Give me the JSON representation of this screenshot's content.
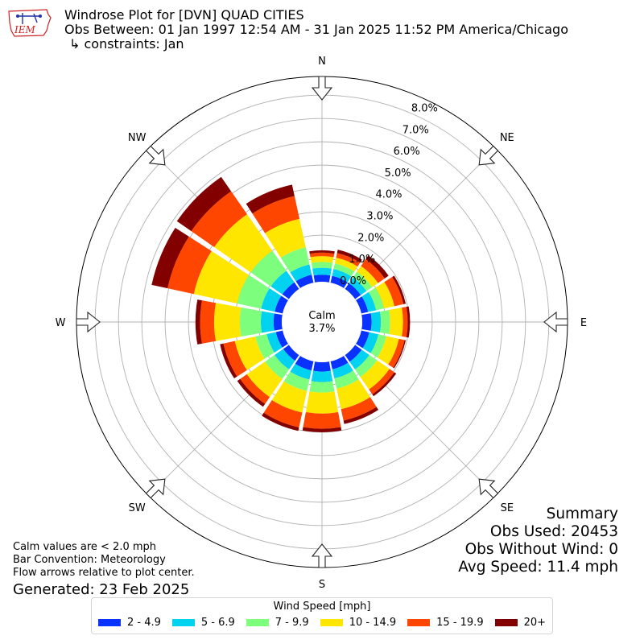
{
  "header": {
    "title": "Windrose Plot for [DVN] QUAD CITIES",
    "obs_between": "Obs Between: 01 Jan 1997 12:54 AM - 31 Jan 2025 11:52 PM America/Chicago",
    "constraints": "↳ constraints: Jan"
  },
  "logo_text": "IEM",
  "calm": {
    "label": "Calm",
    "value": "3.7%"
  },
  "notes": {
    "line1": "Calm values are < 2.0 mph",
    "line2": "Bar Convention: Meteorology",
    "line3": "Flow arrows relative to plot center.",
    "generated": "Generated: 23 Feb 2025"
  },
  "summary": {
    "title": "Summary",
    "obs_used": "Obs Used: 20453",
    "obs_without_wind": "Obs Without Wind: 0",
    "avg_speed": "Avg Speed: 11.4 mph"
  },
  "legend": {
    "title": "Wind Speed [mph]"
  },
  "chart_data": {
    "type": "windrose",
    "directions": [
      "N",
      "NNE",
      "NE",
      "ENE",
      "E",
      "ESE",
      "SE",
      "SSE",
      "S",
      "SSW",
      "SW",
      "WSW",
      "W",
      "WNW",
      "NW",
      "NNW"
    ],
    "direction_labels": [
      "N",
      "NE",
      "E",
      "SE",
      "S",
      "SW",
      "W",
      "NW"
    ],
    "radial_ticks": [
      "0.0%",
      "1.0%",
      "2.0%",
      "3.0%",
      "4.0%",
      "5.0%",
      "6.0%",
      "7.0%",
      "8.0%"
    ],
    "rlim": [
      0,
      8.8
    ],
    "unit": "%",
    "bins": [
      {
        "name": "2 - 4.9",
        "color": "#0a32ff"
      },
      {
        "name": "5 - 6.9",
        "color": "#00d2f0"
      },
      {
        "name": "7 - 9.9",
        "color": "#7dff7d"
      },
      {
        "name": "10 - 14.9",
        "color": "#ffe600"
      },
      {
        "name": "15 - 19.9",
        "color": "#ff4600"
      },
      {
        "name": "20+",
        "color": "#820000"
      }
    ],
    "cumulative": [
      [
        0.3,
        0.6,
        0.85,
        1.1,
        1.25,
        1.35
      ],
      [
        0.3,
        0.6,
        0.85,
        1.1,
        1.3,
        1.45
      ],
      [
        0.3,
        0.6,
        0.9,
        1.2,
        1.55,
        1.75
      ],
      [
        0.3,
        0.65,
        1.0,
        1.45,
        1.85,
        1.95
      ],
      [
        0.4,
        0.8,
        1.2,
        1.75,
        1.95,
        2.05
      ],
      [
        0.35,
        0.75,
        1.1,
        1.65,
        1.9,
        1.95
      ],
      [
        0.35,
        0.75,
        1.15,
        1.8,
        2.05,
        2.15
      ],
      [
        0.35,
        0.75,
        1.2,
        2.1,
        2.6,
        2.75
      ],
      [
        0.4,
        0.85,
        1.3,
        2.2,
        2.85,
        3.0
      ],
      [
        0.4,
        0.8,
        1.3,
        2.25,
        2.9,
        3.05
      ],
      [
        0.3,
        0.75,
        1.25,
        2.2,
        2.55,
        2.7
      ],
      [
        0.3,
        0.7,
        1.2,
        2.1,
        2.6,
        2.75
      ],
      [
        0.35,
        0.9,
        1.8,
        2.9,
        3.5,
        3.7
      ],
      [
        0.35,
        0.95,
        2.0,
        3.9,
        5.05,
        5.75
      ],
      [
        0.35,
        0.95,
        2.0,
        3.9,
        5.1,
        5.85
      ],
      [
        0.35,
        0.8,
        1.55,
        2.8,
        3.8,
        4.3
      ]
    ]
  }
}
